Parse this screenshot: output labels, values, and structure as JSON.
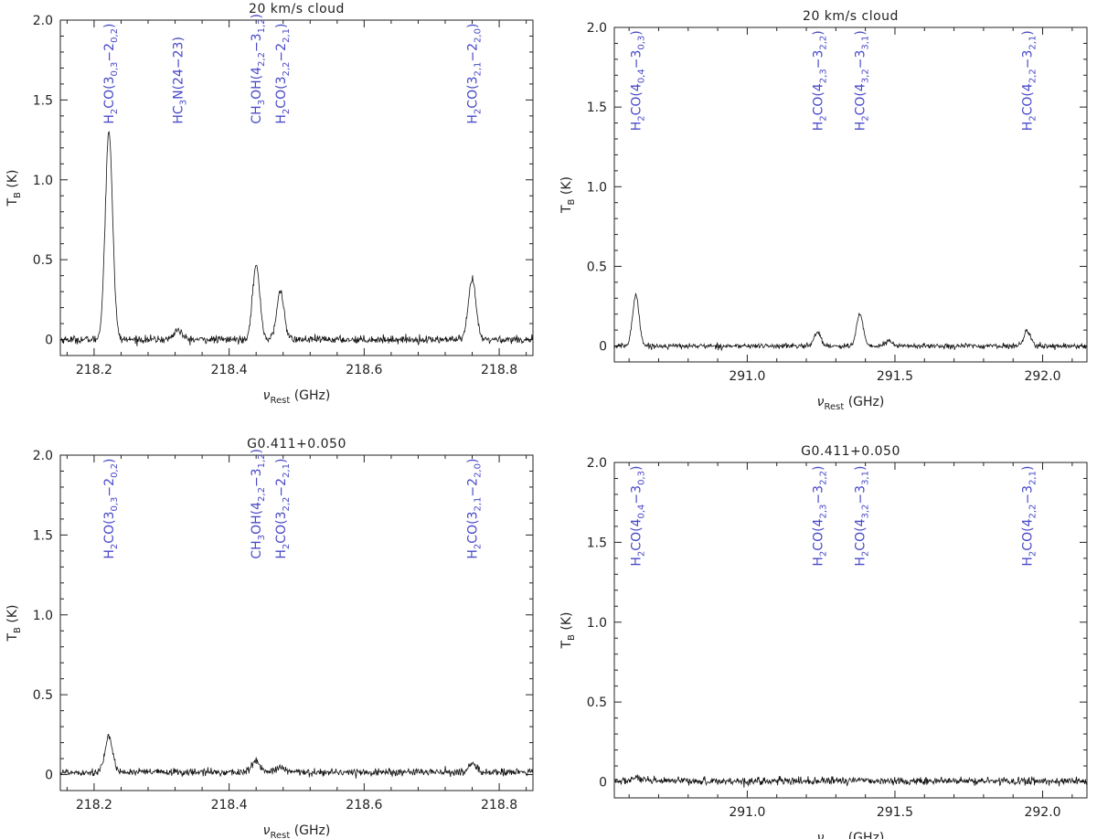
{
  "chart_data": [
    {
      "type": "line",
      "title": "20 km/s cloud",
      "xlabel": "ν_Rest (GHz)",
      "ylabel": "T_B (K)",
      "xlim": [
        218.15,
        218.85
      ],
      "ylim": [
        -0.1,
        2.0
      ],
      "xticks": [
        "218.2",
        "218.4",
        "218.6",
        "218.8"
      ],
      "xtick_values": [
        218.2,
        218.4,
        218.6,
        218.8
      ],
      "yticks": [
        "0",
        "0.5",
        "1.0",
        "1.5",
        "2.0"
      ],
      "ytick_values": [
        0,
        0.5,
        1.0,
        1.5,
        2.0
      ],
      "baseline": 0.0,
      "noise": 0.012,
      "peaks": [
        {
          "x": 218.222,
          "amp": 1.3,
          "width": 0.0055
        },
        {
          "x": 218.324,
          "amp": 0.06,
          "width": 0.006
        },
        {
          "x": 218.44,
          "amp": 0.46,
          "width": 0.0055
        },
        {
          "x": 218.476,
          "amp": 0.3,
          "width": 0.0055
        },
        {
          "x": 218.76,
          "amp": 0.38,
          "width": 0.0055
        }
      ],
      "line_labels": [
        {
          "x": 218.222,
          "text": "H2CO(3_0,3−2_0,2)"
        },
        {
          "x": 218.324,
          "text": "HC3N(24−23)"
        },
        {
          "x": 218.44,
          "text": "CH3OH(4_2,2−3_1,2)"
        },
        {
          "x": 218.476,
          "text": "H2CO(3_2,2−2_2,1)"
        },
        {
          "x": 218.76,
          "text": "H2CO(3_2,1−2_2,0)"
        }
      ]
    },
    {
      "type": "line",
      "title": "20 km/s cloud",
      "xlabel": "ν_Rest (GHz)",
      "ylabel": "T_B (K)",
      "xlim": [
        290.55,
        292.15
      ],
      "ylim": [
        -0.1,
        2.0
      ],
      "xticks": [
        "291.0",
        "291.5",
        "292.0"
      ],
      "xtick_values": [
        291.0,
        291.5,
        292.0
      ],
      "yticks": [
        "0",
        "0.5",
        "1.0",
        "1.5",
        "2.0"
      ],
      "ytick_values": [
        0,
        0.5,
        1.0,
        1.5,
        2.0
      ],
      "baseline": 0.0,
      "noise": 0.008,
      "peaks": [
        {
          "x": 290.623,
          "amp": 0.32,
          "width": 0.011
        },
        {
          "x": 291.238,
          "amp": 0.09,
          "width": 0.011
        },
        {
          "x": 291.381,
          "amp": 0.2,
          "width": 0.011
        },
        {
          "x": 291.48,
          "amp": 0.03,
          "width": 0.012
        },
        {
          "x": 291.948,
          "amp": 0.1,
          "width": 0.011
        }
      ],
      "line_labels": [
        {
          "x": 290.623,
          "text": "H2CO(4_0,4−3_0,3)"
        },
        {
          "x": 291.238,
          "text": "H2CO(4_2,3−3_2,2)"
        },
        {
          "x": 291.381,
          "text": "H2CO(4_3,2−3_3,1)"
        },
        {
          "x": 291.948,
          "text": "H2CO(4_2,2−3_2,1)"
        }
      ]
    },
    {
      "type": "line",
      "title": "G0.411+0.050",
      "xlabel": "ν_Rest (GHz)",
      "ylabel": "T_B (K)",
      "xlim": [
        218.15,
        218.85
      ],
      "ylim": [
        -0.1,
        2.0
      ],
      "xticks": [
        "218.2",
        "218.4",
        "218.6",
        "218.8"
      ],
      "xtick_values": [
        218.2,
        218.4,
        218.6,
        218.8
      ],
      "yticks": [
        "0",
        "0.5",
        "1.0",
        "1.5",
        "2.0"
      ],
      "ytick_values": [
        0,
        0.5,
        1.0,
        1.5,
        2.0
      ],
      "baseline": 0.015,
      "noise": 0.012,
      "peaks": [
        {
          "x": 218.222,
          "amp": 0.21,
          "width": 0.006
        },
        {
          "x": 218.44,
          "amp": 0.07,
          "width": 0.006
        },
        {
          "x": 218.476,
          "amp": 0.03,
          "width": 0.006
        },
        {
          "x": 218.76,
          "amp": 0.05,
          "width": 0.006
        }
      ],
      "line_labels": [
        {
          "x": 218.222,
          "text": "H2CO(3_0,3−2_0,2)"
        },
        {
          "x": 218.44,
          "text": "CH3OH(4_2,2−3_1,2)"
        },
        {
          "x": 218.476,
          "text": "H2CO(3_2,2−2_2,1)"
        },
        {
          "x": 218.76,
          "text": "H2CO(3_2,1−2_2,0)"
        }
      ]
    },
    {
      "type": "line",
      "title": "G0.411+0.050",
      "xlabel": "ν_Rest (GHz)",
      "ylabel": "T_B (K)",
      "xlim": [
        290.55,
        292.15
      ],
      "ylim": [
        -0.1,
        2.0
      ],
      "xticks": [
        "291.0",
        "291.5",
        "292.0"
      ],
      "xtick_values": [
        291.0,
        291.5,
        292.0
      ],
      "yticks": [
        "0",
        "0.5",
        "1.0",
        "1.5",
        "2.0"
      ],
      "ytick_values": [
        0,
        0.5,
        1.0,
        1.5,
        2.0
      ],
      "baseline": 0.005,
      "noise": 0.012,
      "peaks": [
        {
          "x": 290.623,
          "amp": 0.02,
          "width": 0.015
        },
        {
          "x": 291.381,
          "amp": 0.015,
          "width": 0.015
        }
      ],
      "line_labels": [
        {
          "x": 290.623,
          "text": "H2CO(4_0,4−3_0,3)"
        },
        {
          "x": 291.238,
          "text": "H2CO(4_2,3−3_2,2)"
        },
        {
          "x": 291.381,
          "text": "H2CO(4_3,2−3_3,1)"
        },
        {
          "x": 291.948,
          "text": "H2CO(4_2,2−3_2,1)"
        }
      ]
    }
  ]
}
